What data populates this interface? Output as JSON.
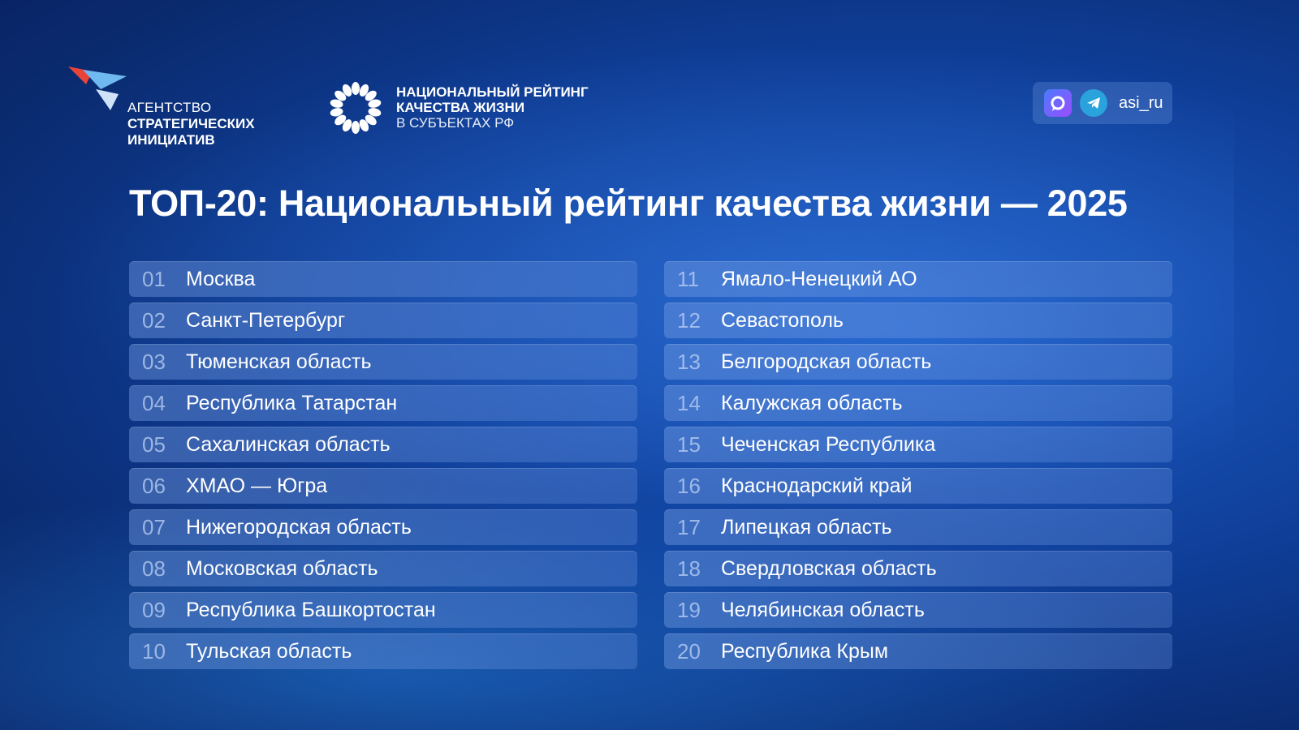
{
  "header": {
    "asi_logo": {
      "line1": "АГЕНТСТВО",
      "line2": "СТРАТЕГИЧЕСКИХ",
      "line3": "ИНИЦИАТИВ",
      "colors": [
        "#e8443a",
        "#6fb8f0",
        "#ffffff"
      ]
    },
    "rating_logo": {
      "line1": "НАЦИОНАЛЬНЫЙ РЕЙТИНГ",
      "line2": "КАЧЕСТВА ЖИЗНИ",
      "line3": "В СУБЪЕКТАХ РФ"
    },
    "social": {
      "icons": [
        "max-messenger-icon",
        "telegram-icon"
      ],
      "handle": "asi_ru"
    }
  },
  "title": "ТОП-20: Национальный рейтинг качества жизни — 2025",
  "ranking": {
    "left": [
      {
        "rank": "01",
        "region": "Москва"
      },
      {
        "rank": "02",
        "region": "Санкт-Петербург"
      },
      {
        "rank": "03",
        "region": "Тюменская область"
      },
      {
        "rank": "04",
        "region": "Республика Татарстан"
      },
      {
        "rank": "05",
        "region": "Сахалинская область"
      },
      {
        "rank": "06",
        "region": "ХМАО — Югра"
      },
      {
        "rank": "07",
        "region": "Нижегородская область"
      },
      {
        "rank": "08",
        "region": "Московская область"
      },
      {
        "rank": "09",
        "region": "Республика Башкортостан"
      },
      {
        "rank": "10",
        "region": "Тульская область"
      }
    ],
    "right": [
      {
        "rank": "11",
        "region": "Ямало-Ненецкий АО"
      },
      {
        "rank": "12",
        "region": "Севастополь"
      },
      {
        "rank": "13",
        "region": "Белгородская область"
      },
      {
        "rank": "14",
        "region": "Калужская область"
      },
      {
        "rank": "15",
        "region": "Чеченская Республика"
      },
      {
        "rank": "16",
        "region": "Краснодарский край"
      },
      {
        "rank": "17",
        "region": "Липецкая область"
      },
      {
        "rank": "18",
        "region": "Свердловская область"
      },
      {
        "rank": "19",
        "region": "Челябинская область"
      },
      {
        "rank": "20",
        "region": "Республика Крым"
      }
    ]
  }
}
